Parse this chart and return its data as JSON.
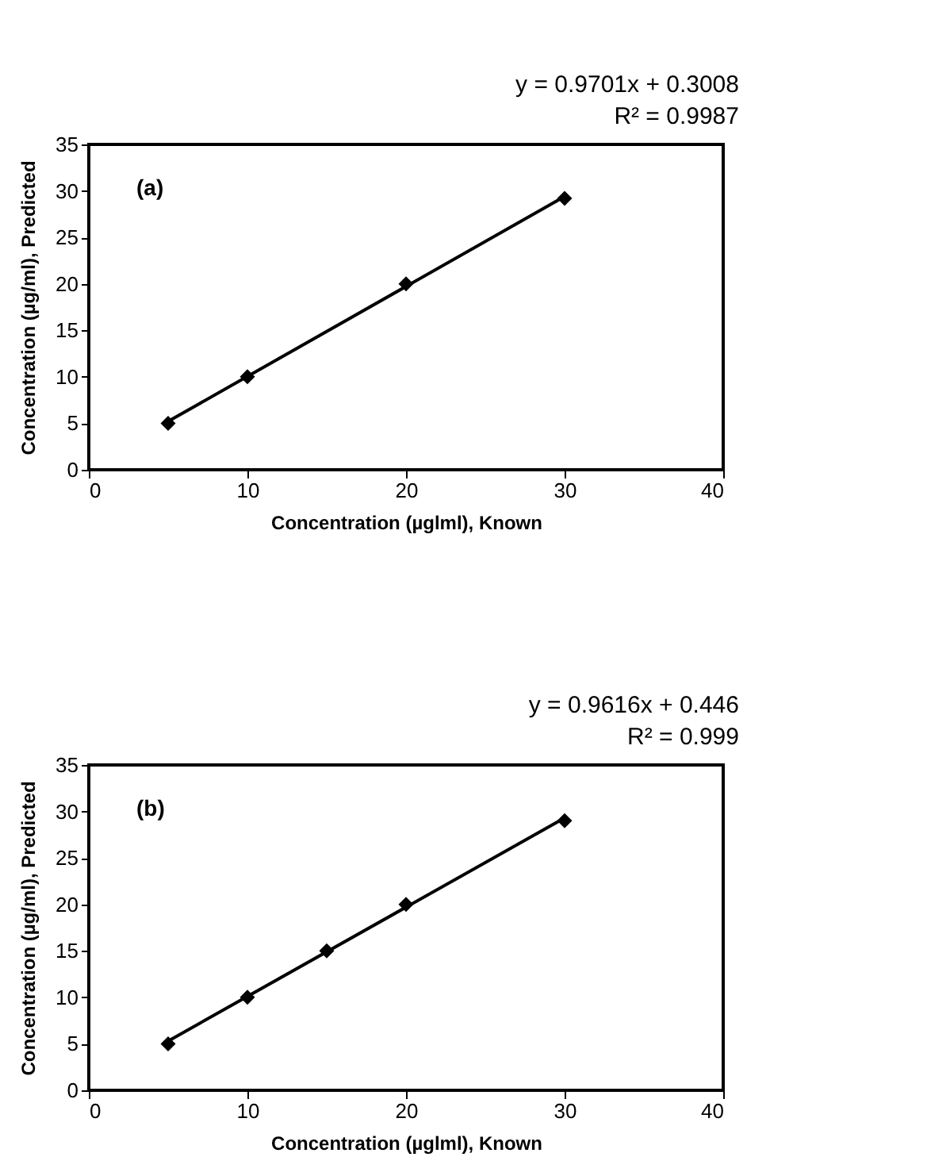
{
  "chart_data": [
    {
      "type": "scatter",
      "xlabel": "Concentration (µglml), Known",
      "ylabel": "Concentration (µg/ml), Predicted",
      "xlim": [
        0,
        40
      ],
      "ylim": [
        0,
        35
      ],
      "xticks": [
        0,
        10,
        20,
        30,
        40
      ],
      "yticks": [
        0,
        5,
        10,
        15,
        20,
        25,
        30,
        35
      ],
      "grid": false,
      "marker": "diamond",
      "annotations": [
        "y = 0.9701x + 0.3008",
        "R² = 0.9987",
        "(a)"
      ],
      "series": [
        {
          "color": "#000000",
          "x": [
            5,
            10,
            20,
            30
          ],
          "values": [
            5,
            10,
            20,
            29.2
          ]
        },
        {
          "type": "line",
          "color": "#000000",
          "line_style": "solid",
          "marker": "none",
          "x": [
            5,
            30
          ],
          "values": [
            5.2,
            29.4
          ]
        }
      ]
    },
    {
      "type": "scatter",
      "xlabel": "Concentration (µglml), Known",
      "ylabel": "Concentration (µg/ml), Predicted",
      "xlim": [
        0,
        40
      ],
      "ylim": [
        0,
        35
      ],
      "xticks": [
        0,
        10,
        20,
        30,
        40
      ],
      "yticks": [
        0,
        5,
        10,
        15,
        20,
        25,
        30,
        35
      ],
      "grid": false,
      "marker": "diamond",
      "annotations": [
        "y = 0.9616x + 0.446",
        "R² = 0.999",
        "(b)"
      ],
      "series": [
        {
          "color": "#000000",
          "x": [
            5,
            10,
            15,
            20,
            30
          ],
          "values": [
            5,
            10,
            15,
            20,
            29
          ]
        },
        {
          "type": "line",
          "color": "#000000",
          "line_style": "solid",
          "marker": "none",
          "x": [
            5,
            30
          ],
          "values": [
            5.3,
            29.3
          ]
        }
      ]
    }
  ]
}
